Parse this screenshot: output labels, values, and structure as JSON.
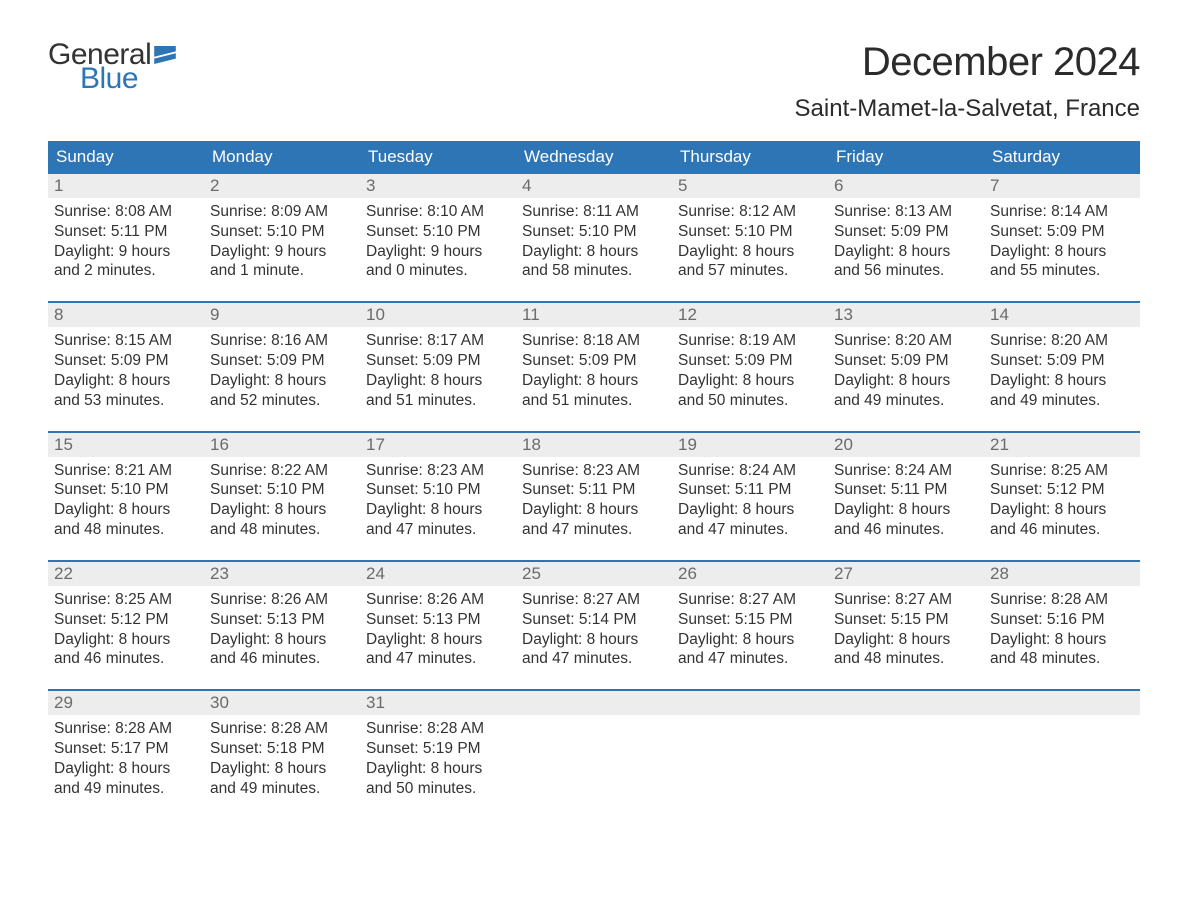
{
  "logo": {
    "word1": "General",
    "word2": "Blue",
    "text_color": "#333333",
    "accent_color": "#2e75b6"
  },
  "title": {
    "month": "December 2024",
    "location": "Saint-Mamet-la-Salvetat, France",
    "title_fontsize": 40,
    "location_fontsize": 24
  },
  "colors": {
    "header_bg": "#2e75b6",
    "header_text": "#ffffff",
    "week_border": "#2e75b6",
    "daynum_bg": "#ededed",
    "daynum_text": "#6b6b6b",
    "body_text": "#333333",
    "page_bg": "#ffffff"
  },
  "layout": {
    "columns": 7,
    "rows": 5,
    "cell_font_size": 15.5,
    "header_font_size": 17
  },
  "weekdays": [
    "Sunday",
    "Monday",
    "Tuesday",
    "Wednesday",
    "Thursday",
    "Friday",
    "Saturday"
  ],
  "days": [
    {
      "n": "1",
      "sunrise": "Sunrise: 8:08 AM",
      "sunset": "Sunset: 5:11 PM",
      "d1": "Daylight: 9 hours",
      "d2": "and 2 minutes."
    },
    {
      "n": "2",
      "sunrise": "Sunrise: 8:09 AM",
      "sunset": "Sunset: 5:10 PM",
      "d1": "Daylight: 9 hours",
      "d2": "and 1 minute."
    },
    {
      "n": "3",
      "sunrise": "Sunrise: 8:10 AM",
      "sunset": "Sunset: 5:10 PM",
      "d1": "Daylight: 9 hours",
      "d2": "and 0 minutes."
    },
    {
      "n": "4",
      "sunrise": "Sunrise: 8:11 AM",
      "sunset": "Sunset: 5:10 PM",
      "d1": "Daylight: 8 hours",
      "d2": "and 58 minutes."
    },
    {
      "n": "5",
      "sunrise": "Sunrise: 8:12 AM",
      "sunset": "Sunset: 5:10 PM",
      "d1": "Daylight: 8 hours",
      "d2": "and 57 minutes."
    },
    {
      "n": "6",
      "sunrise": "Sunrise: 8:13 AM",
      "sunset": "Sunset: 5:09 PM",
      "d1": "Daylight: 8 hours",
      "d2": "and 56 minutes."
    },
    {
      "n": "7",
      "sunrise": "Sunrise: 8:14 AM",
      "sunset": "Sunset: 5:09 PM",
      "d1": "Daylight: 8 hours",
      "d2": "and 55 minutes."
    },
    {
      "n": "8",
      "sunrise": "Sunrise: 8:15 AM",
      "sunset": "Sunset: 5:09 PM",
      "d1": "Daylight: 8 hours",
      "d2": "and 53 minutes."
    },
    {
      "n": "9",
      "sunrise": "Sunrise: 8:16 AM",
      "sunset": "Sunset: 5:09 PM",
      "d1": "Daylight: 8 hours",
      "d2": "and 52 minutes."
    },
    {
      "n": "10",
      "sunrise": "Sunrise: 8:17 AM",
      "sunset": "Sunset: 5:09 PM",
      "d1": "Daylight: 8 hours",
      "d2": "and 51 minutes."
    },
    {
      "n": "11",
      "sunrise": "Sunrise: 8:18 AM",
      "sunset": "Sunset: 5:09 PM",
      "d1": "Daylight: 8 hours",
      "d2": "and 51 minutes."
    },
    {
      "n": "12",
      "sunrise": "Sunrise: 8:19 AM",
      "sunset": "Sunset: 5:09 PM",
      "d1": "Daylight: 8 hours",
      "d2": "and 50 minutes."
    },
    {
      "n": "13",
      "sunrise": "Sunrise: 8:20 AM",
      "sunset": "Sunset: 5:09 PM",
      "d1": "Daylight: 8 hours",
      "d2": "and 49 minutes."
    },
    {
      "n": "14",
      "sunrise": "Sunrise: 8:20 AM",
      "sunset": "Sunset: 5:09 PM",
      "d1": "Daylight: 8 hours",
      "d2": "and 49 minutes."
    },
    {
      "n": "15",
      "sunrise": "Sunrise: 8:21 AM",
      "sunset": "Sunset: 5:10 PM",
      "d1": "Daylight: 8 hours",
      "d2": "and 48 minutes."
    },
    {
      "n": "16",
      "sunrise": "Sunrise: 8:22 AM",
      "sunset": "Sunset: 5:10 PM",
      "d1": "Daylight: 8 hours",
      "d2": "and 48 minutes."
    },
    {
      "n": "17",
      "sunrise": "Sunrise: 8:23 AM",
      "sunset": "Sunset: 5:10 PM",
      "d1": "Daylight: 8 hours",
      "d2": "and 47 minutes."
    },
    {
      "n": "18",
      "sunrise": "Sunrise: 8:23 AM",
      "sunset": "Sunset: 5:11 PM",
      "d1": "Daylight: 8 hours",
      "d2": "and 47 minutes."
    },
    {
      "n": "19",
      "sunrise": "Sunrise: 8:24 AM",
      "sunset": "Sunset: 5:11 PM",
      "d1": "Daylight: 8 hours",
      "d2": "and 47 minutes."
    },
    {
      "n": "20",
      "sunrise": "Sunrise: 8:24 AM",
      "sunset": "Sunset: 5:11 PM",
      "d1": "Daylight: 8 hours",
      "d2": "and 46 minutes."
    },
    {
      "n": "21",
      "sunrise": "Sunrise: 8:25 AM",
      "sunset": "Sunset: 5:12 PM",
      "d1": "Daylight: 8 hours",
      "d2": "and 46 minutes."
    },
    {
      "n": "22",
      "sunrise": "Sunrise: 8:25 AM",
      "sunset": "Sunset: 5:12 PM",
      "d1": "Daylight: 8 hours",
      "d2": "and 46 minutes."
    },
    {
      "n": "23",
      "sunrise": "Sunrise: 8:26 AM",
      "sunset": "Sunset: 5:13 PM",
      "d1": "Daylight: 8 hours",
      "d2": "and 46 minutes."
    },
    {
      "n": "24",
      "sunrise": "Sunrise: 8:26 AM",
      "sunset": "Sunset: 5:13 PM",
      "d1": "Daylight: 8 hours",
      "d2": "and 47 minutes."
    },
    {
      "n": "25",
      "sunrise": "Sunrise: 8:27 AM",
      "sunset": "Sunset: 5:14 PM",
      "d1": "Daylight: 8 hours",
      "d2": "and 47 minutes."
    },
    {
      "n": "26",
      "sunrise": "Sunrise: 8:27 AM",
      "sunset": "Sunset: 5:15 PM",
      "d1": "Daylight: 8 hours",
      "d2": "and 47 minutes."
    },
    {
      "n": "27",
      "sunrise": "Sunrise: 8:27 AM",
      "sunset": "Sunset: 5:15 PM",
      "d1": "Daylight: 8 hours",
      "d2": "and 48 minutes."
    },
    {
      "n": "28",
      "sunrise": "Sunrise: 8:28 AM",
      "sunset": "Sunset: 5:16 PM",
      "d1": "Daylight: 8 hours",
      "d2": "and 48 minutes."
    },
    {
      "n": "29",
      "sunrise": "Sunrise: 8:28 AM",
      "sunset": "Sunset: 5:17 PM",
      "d1": "Daylight: 8 hours",
      "d2": "and 49 minutes."
    },
    {
      "n": "30",
      "sunrise": "Sunrise: 8:28 AM",
      "sunset": "Sunset: 5:18 PM",
      "d1": "Daylight: 8 hours",
      "d2": "and 49 minutes."
    },
    {
      "n": "31",
      "sunrise": "Sunrise: 8:28 AM",
      "sunset": "Sunset: 5:19 PM",
      "d1": "Daylight: 8 hours",
      "d2": "and 50 minutes."
    }
  ]
}
